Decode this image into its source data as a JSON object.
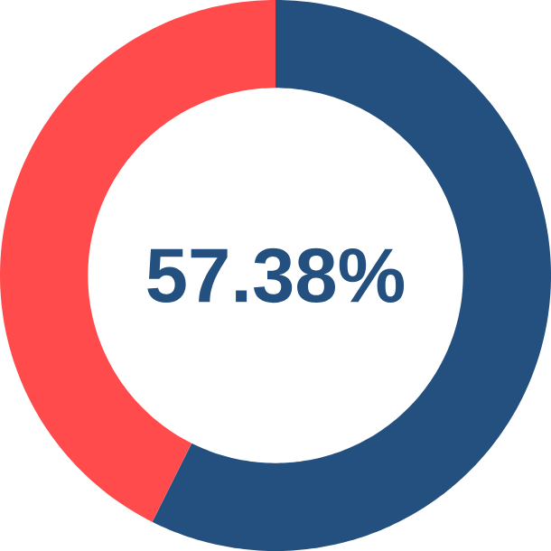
{
  "chart_data": {
    "type": "donut",
    "categories": [
      null,
      null
    ],
    "values": [
      57.38,
      42.62
    ],
    "colors": [
      "#24507f",
      "#ff4b4b"
    ],
    "annotations": [
      "57.38%"
    ]
  }
}
